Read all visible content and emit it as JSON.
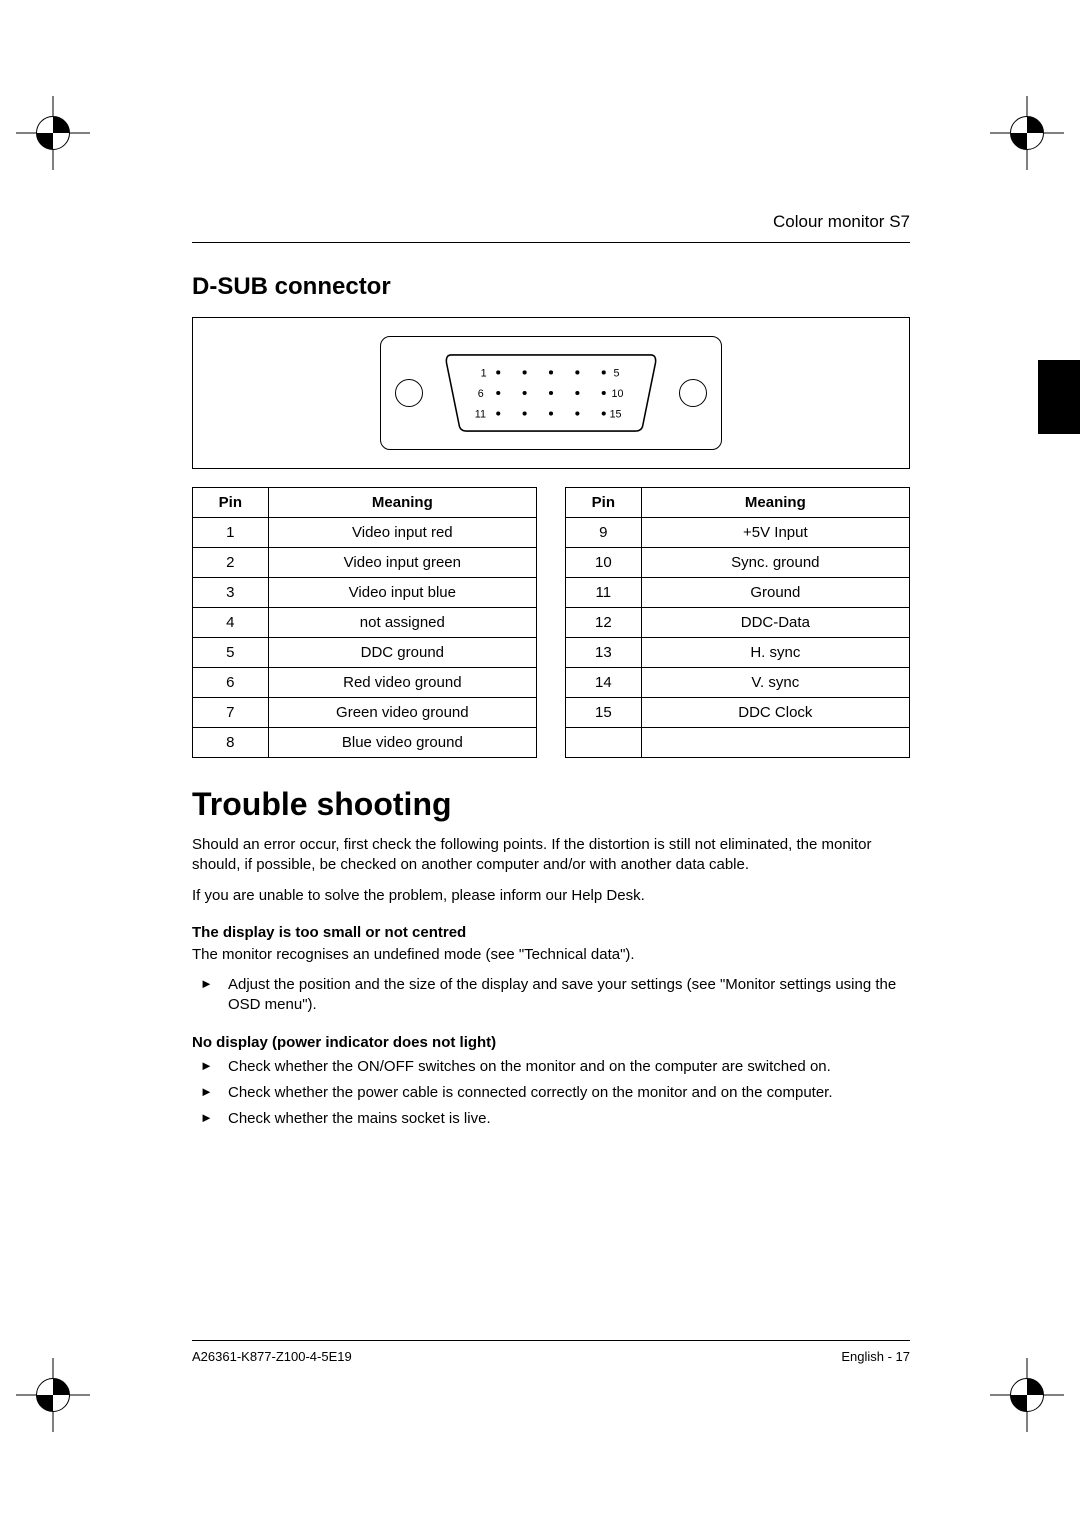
{
  "header": {
    "running_title": "Colour monitor S7"
  },
  "section_dsub": {
    "title": "D-SUB connector"
  },
  "connector": {
    "row_labels": {
      "r1_left": "1",
      "r1_right": "5",
      "r2_left": "6",
      "r2_right": "10",
      "r3_left": "11",
      "r3_right": "15"
    }
  },
  "pin_table": {
    "columns": {
      "pin": "Pin",
      "meaning": "Meaning"
    },
    "left_rows": [
      {
        "pin": "1",
        "meaning": "Video input red"
      },
      {
        "pin": "2",
        "meaning": "Video input green"
      },
      {
        "pin": "3",
        "meaning": "Video input blue"
      },
      {
        "pin": "4",
        "meaning": "not assigned"
      },
      {
        "pin": "5",
        "meaning": "DDC ground"
      },
      {
        "pin": "6",
        "meaning": "Red video ground"
      },
      {
        "pin": "7",
        "meaning": "Green video ground"
      },
      {
        "pin": "8",
        "meaning": "Blue video ground"
      }
    ],
    "right_rows": [
      {
        "pin": "9",
        "meaning": "+5V Input"
      },
      {
        "pin": "10",
        "meaning": "Sync. ground"
      },
      {
        "pin": "11",
        "meaning": "Ground"
      },
      {
        "pin": "12",
        "meaning": "DDC-Data"
      },
      {
        "pin": "13",
        "meaning": "H. sync"
      },
      {
        "pin": "14",
        "meaning": "V. sync"
      },
      {
        "pin": "15",
        "meaning": "DDC Clock"
      },
      {
        "pin": "",
        "meaning": ""
      }
    ]
  },
  "trouble": {
    "title": "Trouble shooting",
    "intro1": "Should an error occur, first check the following points. If the distortion is still not eliminated, the monitor should, if possible, be checked on another computer and/or with another data cable.",
    "intro2": "If you are unable to solve the problem, please inform our Help Desk.",
    "topic1_title": "The display is too small or not centred",
    "topic1_line": "The monitor recognises an undefined mode (see \"Technical data\").",
    "topic1_steps": [
      "Adjust the position and the size of the display and save your settings (see \"Monitor settings using the OSD menu\")."
    ],
    "topic2_title": "No display (power indicator does not light)",
    "topic2_steps": [
      "Check whether the ON/OFF switches on the monitor and on the computer are switched on.",
      "Check whether the power cable is connected correctly on the monitor and on the computer.",
      "Check whether the mains socket is live."
    ]
  },
  "footer": {
    "doc_id": "A26361-K877-Z100-4-5E19",
    "page": "English - 17"
  }
}
